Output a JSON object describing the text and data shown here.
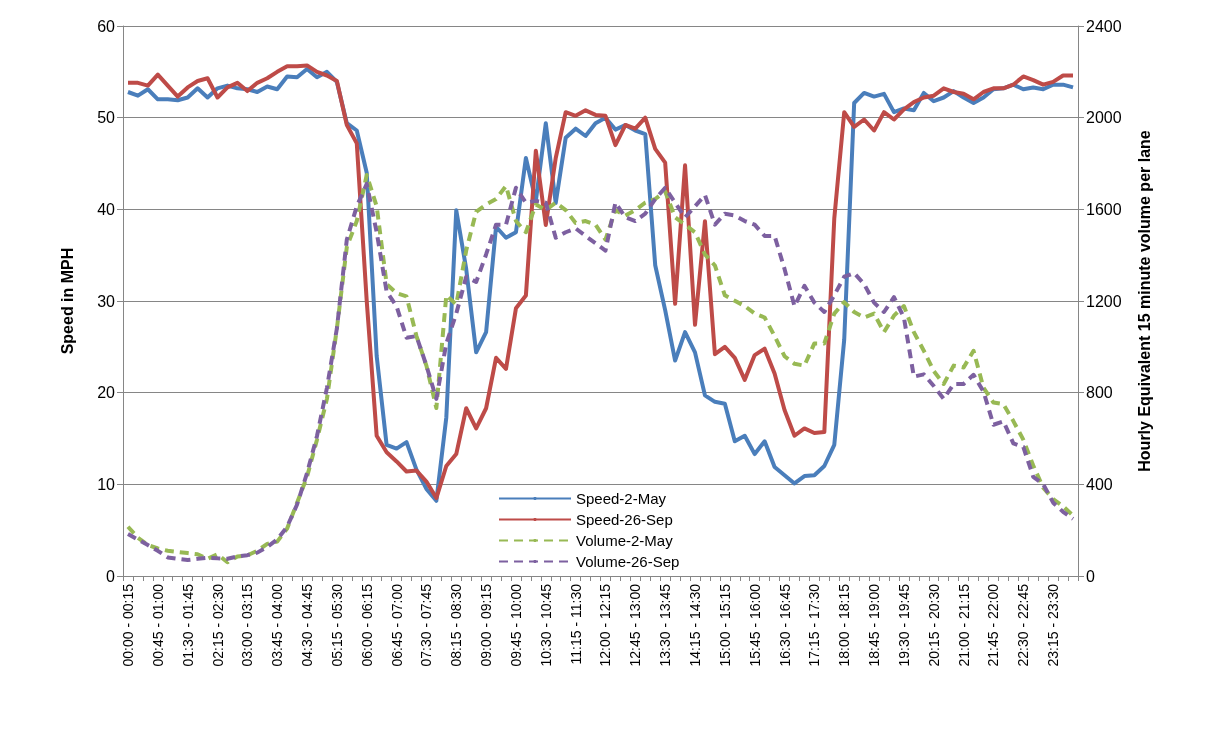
{
  "chart_data": {
    "type": "line",
    "categories": [
      "00:00 - 00:15",
      null,
      null,
      "00:45 - 01:00",
      null,
      null,
      "01:30 - 01:45",
      null,
      null,
      "02:15 - 02:30",
      null,
      null,
      "03:00 - 03:15",
      null,
      null,
      "03:45 - 04:00",
      null,
      null,
      "04:30 - 04:45",
      null,
      null,
      "05:15 - 05:30",
      null,
      null,
      "06:00 - 06:15",
      null,
      null,
      "06:45 - 07:00",
      null,
      null,
      "07:30 - 07:45",
      null,
      null,
      "08:15 - 08:30",
      null,
      null,
      "09:00 - 09:15",
      null,
      null,
      "09:45 - 10:00",
      null,
      null,
      "10:30 - 10:45",
      null,
      null,
      "11:15 - 11:30",
      null,
      null,
      "12:00 - 12:15",
      null,
      null,
      "12:45 - 13:00",
      null,
      null,
      "13:30 - 13:45",
      null,
      null,
      "14:15 - 14:30",
      null,
      null,
      "15:00 - 15:15",
      null,
      null,
      "15:45 - 16:00",
      null,
      null,
      "16:30 - 16:45",
      null,
      null,
      "17:15 - 17:30",
      null,
      null,
      "18:00 - 18:15",
      null,
      null,
      "18:45 - 19:00",
      null,
      null,
      "19:30 - 19:45",
      null,
      null,
      "20:15 - 20:30",
      null,
      null,
      "21:00 - 21:15",
      null,
      null,
      "21:45 - 22:00",
      null,
      null,
      "22:30 - 22:45",
      null,
      null,
      "23:15 - 23:30",
      null,
      null
    ],
    "ylabel": "Speed in MPH",
    "y2label": "Hourly Equivalent 15 minute volume per lane",
    "ylim": [
      0,
      60
    ],
    "yticks": [
      0,
      10,
      20,
      30,
      40,
      50,
      60
    ],
    "y2lim": [
      0,
      2400
    ],
    "y2ticks": [
      0,
      400,
      800,
      1200,
      1600,
      2000,
      2400
    ],
    "grid": "y",
    "legend": "bottom",
    "marker": "none",
    "series": [
      {
        "name": "Speed-2-May",
        "color": "#4a7ebb",
        "line_style": "solid",
        "values": [
          52.8,
          52.4,
          53.1,
          52,
          52,
          51.9,
          52.2,
          53.2,
          52.2,
          53.2,
          53.5,
          53.2,
          53.1,
          52.8,
          53.4,
          53.1,
          54.5,
          54.4,
          55.3,
          54.4,
          55,
          53.9,
          49.4,
          48.6,
          44,
          24,
          14.3,
          13.9,
          14.6,
          11.6,
          9.5,
          8.2,
          17.3,
          39.9,
          33.5,
          24.4,
          26.6,
          38.1,
          36.9,
          37.5,
          45.6,
          40.9,
          49.4,
          40.7,
          47.8,
          48.8,
          48,
          49.4,
          50,
          48.7,
          49.2,
          48.6,
          48.2,
          33.9,
          29,
          23.5,
          26.6,
          24.4,
          19.7,
          19,
          18.8,
          14.7,
          15.3,
          13.3,
          14.7,
          11.9,
          11,
          10.1,
          10.9,
          11,
          12,
          14.3,
          25.8,
          51.6,
          52.7,
          52.3,
          52.6,
          50.6,
          51,
          50.8,
          52.7,
          51.8,
          52.2,
          52.9,
          52.2,
          51.6,
          52.2,
          53.1,
          53.2,
          53.6,
          53.1,
          53.3,
          53.1,
          53.6,
          53.6,
          53.3
        ]
      },
      {
        "name": "Speed-26-Sep",
        "color": "#be4b48",
        "line_style": "solid",
        "values": [
          53.8,
          53.8,
          53.5,
          54.7,
          53.5,
          52.3,
          53.3,
          54,
          54.3,
          52.2,
          53.3,
          53.8,
          52.9,
          53.8,
          54.3,
          55,
          55.6,
          55.6,
          55.7,
          55,
          54.6,
          54,
          49.2,
          47.2,
          30,
          15.3,
          13.5,
          12.5,
          11.4,
          11.5,
          10.3,
          8.5,
          12,
          13.3,
          18.3,
          16.1,
          18.3,
          23.8,
          22.6,
          29.2,
          30.6,
          46.4,
          38.3,
          45.6,
          50.6,
          50.2,
          50.8,
          50.3,
          50.2,
          47,
          49.2,
          48.8,
          50,
          46.6,
          45.1,
          29.7,
          44.8,
          27.4,
          38.7,
          24.2,
          25,
          23.8,
          21.4,
          24.1,
          24.8,
          22.1,
          18.1,
          15.3,
          16.1,
          15.6,
          15.7,
          39,
          50.6,
          49,
          49.8,
          48.6,
          50.6,
          49.8,
          50.9,
          51.7,
          52.2,
          52.4,
          53.2,
          52.8,
          52.6,
          52,
          52.8,
          53.2,
          53.2,
          53.6,
          54.5,
          54.1,
          53.6,
          53.9,
          54.6,
          54.6
        ]
      },
      {
        "name": "Volume-2-May",
        "color": "#98b954",
        "line_style": "dashed",
        "axis": "y2",
        "values": [
          215,
          167,
          135,
          120,
          110,
          105,
          100,
          95,
          75,
          95,
          60,
          85,
          90,
          110,
          140,
          150,
          207,
          320,
          433,
          595,
          773,
          1080,
          1436,
          1549,
          1750,
          1613,
          1274,
          1234,
          1220,
          1047,
          918,
          733,
          1225,
          1185,
          1420,
          1589,
          1621,
          1645,
          1702,
          1549,
          1500,
          1621,
          1597,
          1629,
          1597,
          1540,
          1549,
          1533,
          1468,
          1597,
          1573,
          1597,
          1629,
          1645,
          1678,
          1565,
          1533,
          1500,
          1403,
          1355,
          1225,
          1201,
          1178,
          1145,
          1128,
          1047,
          959,
          926,
          918,
          1015,
          1015,
          1145,
          1195,
          1152,
          1128,
          1145,
          1064,
          1136,
          1178,
          1064,
          983,
          894,
          838,
          918,
          910,
          983,
          821,
          757,
          750,
          676,
          595,
          482,
          385,
          336,
          304,
          264
        ]
      },
      {
        "name": "Volume-26-Sep",
        "color": "#7d60a0",
        "line_style": "dashed",
        "axis": "y2",
        "values": [
          183,
          159,
          135,
          110,
          81,
          75,
          70,
          75,
          80,
          77,
          75,
          85,
          91,
          102,
          127,
          159,
          215,
          312,
          449,
          611,
          821,
          1080,
          1468,
          1613,
          1711,
          1500,
          1241,
          1177,
          1040,
          1047,
          918,
          773,
          1015,
          1145,
          1306,
          1283,
          1403,
          1533,
          1533,
          1694,
          1629,
          1637,
          1629,
          1476,
          1500,
          1517,
          1484,
          1452,
          1420,
          1629,
          1565,
          1549,
          1581,
          1645,
          1694,
          1629,
          1565,
          1613,
          1662,
          1533,
          1581,
          1573,
          1549,
          1533,
          1484,
          1484,
          1340,
          1177,
          1266,
          1193,
          1152,
          1225,
          1306,
          1322,
          1274,
          1193,
          1152,
          1217,
          1128,
          870,
          880,
          829,
          773,
          838,
          838,
          878,
          805,
          660,
          675,
          579,
          563,
          433,
          401,
          320,
          280,
          249
        ]
      }
    ]
  }
}
